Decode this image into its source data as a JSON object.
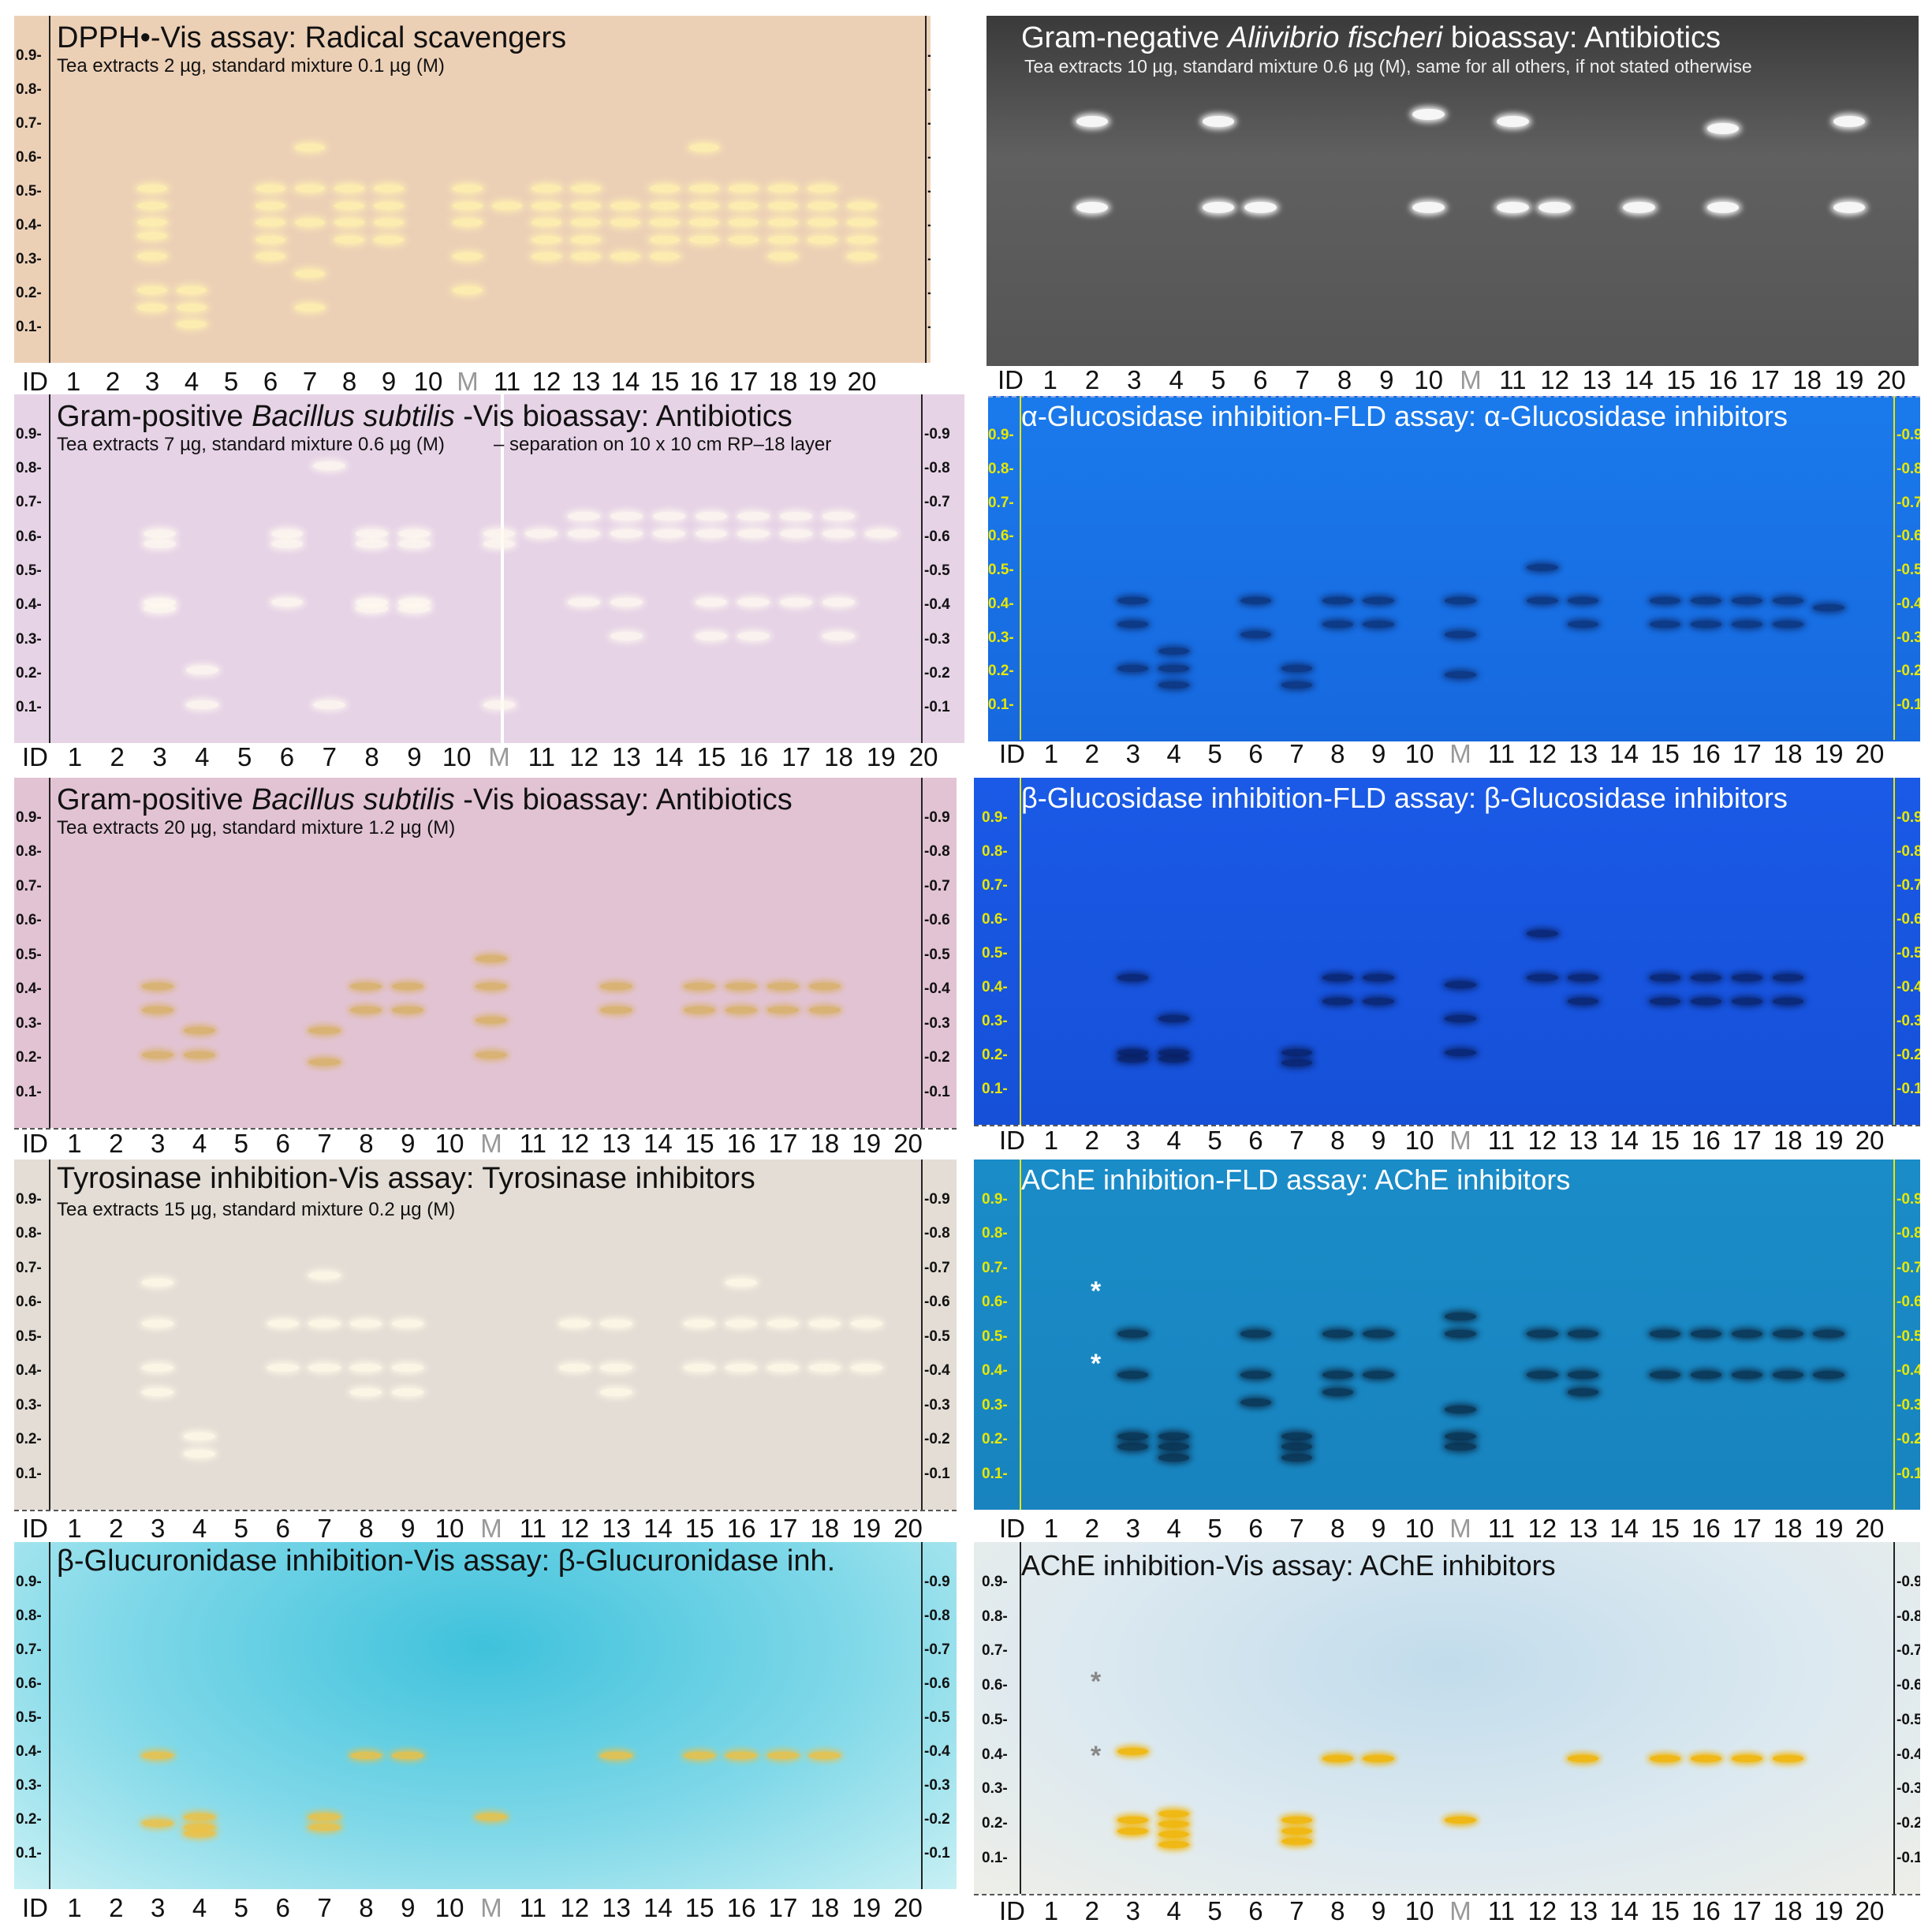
{
  "lane_labels": [
    "ID",
    "1",
    "2",
    "3",
    "4",
    "5",
    "6",
    "7",
    "8",
    "9",
    "10",
    "M",
    "11",
    "12",
    "13",
    "14",
    "15",
    "16",
    "17",
    "18",
    "19",
    "20"
  ],
  "rf_ticks": [
    "0.9",
    "0.8",
    "0.7",
    "0.6",
    "0.5",
    "0.4",
    "0.3",
    "0.2",
    "0.1"
  ],
  "panels": {
    "p1": {
      "title": "DPPH•-Vis assay: Radical scavengers",
      "subtitle": "Tea extracts 2 µg, standard mixture 0.1 µg (M)",
      "background": "#eccfb4",
      "band_color": "#fff2b0"
    },
    "p2": {
      "title_pre": "Gram-negative ",
      "title_italic": "Aliivibrio fischeri",
      "title_post": " bioassay: Antibiotics",
      "subtitle": "Tea extracts 10 µg, standard mixture 0.6 µg (M), same for all others, if not stated otherwise",
      "background": "#555555",
      "band_color": "#ffffff"
    },
    "p3": {
      "title_pre": "Gram-positive ",
      "title_italic": "Bacillus subtilis",
      "title_post": " -Vis bioassay: Antibiotics",
      "subtitle": "Tea extracts 7 µg, standard mixture 0.6 µg (M)",
      "note": "separation on 10 x 10 cm RP–18 layer",
      "background": "#e6d4e6",
      "band_color": "#fffaf0"
    },
    "p4": {
      "title": "α-Glucosidase inhibition-FLD assay: α-Glucosidase inhibitors",
      "background": "#1877e8",
      "band_color": "#0b2a6a",
      "axis_color": "#e8e800"
    },
    "p5": {
      "title_pre": "Gram-positive ",
      "title_italic": "Bacillus subtilis",
      "title_post": " -Vis bioassay: Antibiotics",
      "subtitle": "Tea extracts 20 µg, standard mixture 1.2 µg (M)",
      "background": "#e3c4d4",
      "band_color": "#d8b060"
    },
    "p6": {
      "title": "β-Glucosidase inhibition-FLD assay: β-Glucosidase inhibitors",
      "background": "#1a56e6",
      "band_color": "#081c5a",
      "axis_color": "#e8e800"
    },
    "p7": {
      "title": "Tyrosinase inhibition-Vis assay: Tyrosinase inhibitors",
      "subtitle": "Tea extracts 15 µg, standard mixture 0.2 µg (M)",
      "background": "#e2dcd4",
      "band_color": "#fffae8"
    },
    "p8": {
      "title": "AChE inhibition-FLD assay: AChE inhibitors",
      "background": "#1989c4",
      "band_color": "#0a2a45",
      "axis_color": "#e8e800",
      "stars": [
        "*",
        "*"
      ]
    },
    "p9": {
      "title": "β-Glucuronidase inhibition-Vis assay: β-Glucuronidase inh.",
      "background": "#8ee0ea",
      "band_color": "#f0c040"
    },
    "p10": {
      "title": "AChE inhibition-Vis assay: AChE inhibitors",
      "background": "#e4ecf0",
      "band_color": "#f2b400",
      "stars": [
        "*",
        "*"
      ]
    }
  }
}
